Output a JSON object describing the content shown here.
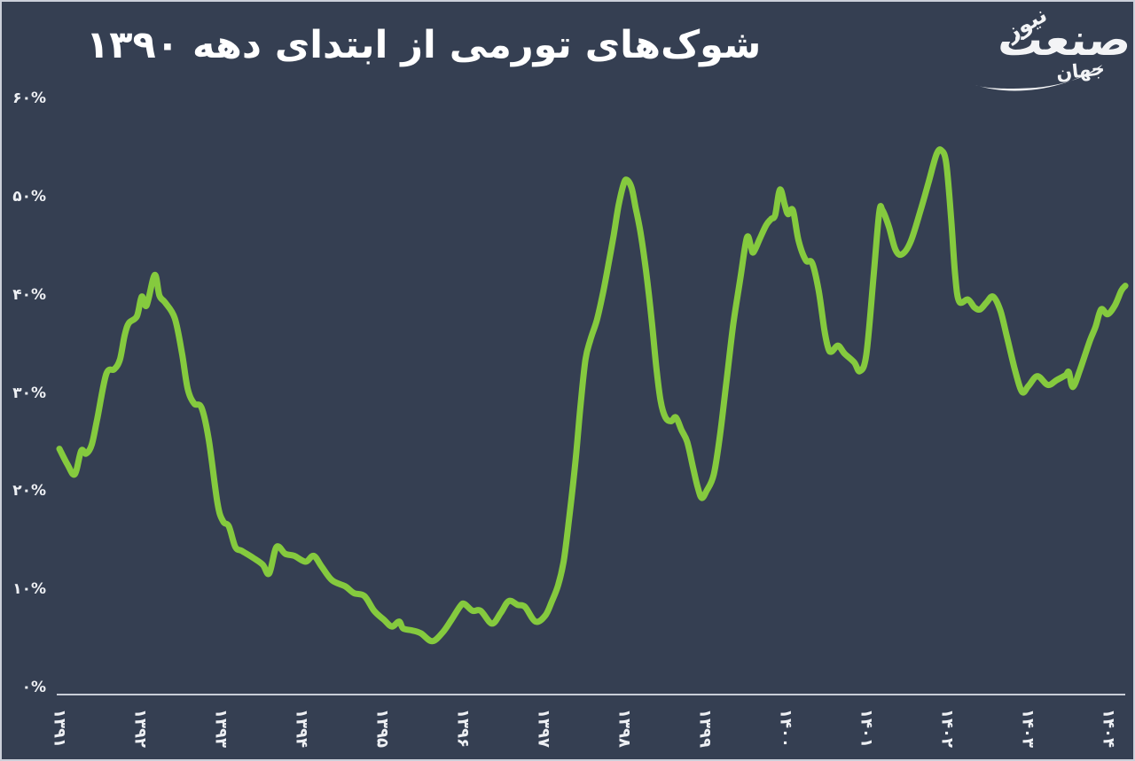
{
  "page": {
    "background_color": "#353f52",
    "border_color": "#ccd0da",
    "text_color": "#eef0f4"
  },
  "header": {
    "title": "شوک‌های تورمی از ابتدای دهه ۱۳۹۰"
  },
  "logo": {
    "top_word": "نیوز",
    "main_word": "صنعت",
    "bottom_word": "جهان"
  },
  "chart_data": {
    "type": "line",
    "title": "شوک‌های تورمی از ابتدای دهه ۱۳۹۰",
    "xlabel": "",
    "ylabel": "",
    "grid": false,
    "legend": "none",
    "line_color": "#85ca3e",
    "axis_color": "#c9ced8",
    "ylim": [
      0,
      60
    ],
    "xlim": [
      1390.95,
      1404.25
    ],
    "y_ticks": [
      {
        "label": "۶۰%",
        "value": 60
      },
      {
        "label": "۵۰%",
        "value": 50
      },
      {
        "label": "۴۰%",
        "value": 40
      },
      {
        "label": "۳۰%",
        "value": 30
      },
      {
        "label": "۲۰%",
        "value": 20
      },
      {
        "label": "۱۰%",
        "value": 10
      },
      {
        "label": "۰%",
        "value": 0
      }
    ],
    "x_ticks": [
      {
        "label": "۱۳۹۱",
        "year": 1391
      },
      {
        "label": "۱۳۹۲",
        "year": 1392
      },
      {
        "label": "۱۳۹۳",
        "year": 1393
      },
      {
        "label": "۱۳۹۴",
        "year": 1394
      },
      {
        "label": "۱۳۹۵",
        "year": 1395
      },
      {
        "label": "۱۳۹۶",
        "year": 1396
      },
      {
        "label": "۱۳۹۷",
        "year": 1397
      },
      {
        "label": "۱۳۹۸",
        "year": 1398
      },
      {
        "label": "۱۳۹۹",
        "year": 1399
      },
      {
        "label": "۱۴۰۰",
        "year": 1400
      },
      {
        "label": "۱۴۰۱",
        "year": 1401
      },
      {
        "label": "۱۴۰۲",
        "year": 1402
      },
      {
        "label": "۱۴۰۳",
        "year": 1403
      },
      {
        "label": "۱۴۰۴",
        "year": 1404
      }
    ],
    "points": [
      [
        1391.0,
        24.4
      ],
      [
        1391.1,
        22.8
      ],
      [
        1391.19,
        21.8
      ],
      [
        1391.27,
        24.2
      ],
      [
        1391.33,
        23.9
      ],
      [
        1391.4,
        24.8
      ],
      [
        1391.47,
        27.5
      ],
      [
        1391.58,
        32.0
      ],
      [
        1391.68,
        32.5
      ],
      [
        1391.75,
        33.5
      ],
      [
        1391.81,
        36.0
      ],
      [
        1391.86,
        37.2
      ],
      [
        1391.96,
        37.9
      ],
      [
        1392.02,
        39.9
      ],
      [
        1392.08,
        39.0
      ],
      [
        1392.18,
        42.1
      ],
      [
        1392.24,
        40.0
      ],
      [
        1392.31,
        39.3
      ],
      [
        1392.43,
        37.7
      ],
      [
        1392.52,
        34.1
      ],
      [
        1392.59,
        30.5
      ],
      [
        1392.67,
        29.0
      ],
      [
        1392.76,
        28.6
      ],
      [
        1392.85,
        25.4
      ],
      [
        1392.96,
        18.8
      ],
      [
        1393.03,
        17.0
      ],
      [
        1393.1,
        16.5
      ],
      [
        1393.18,
        14.4
      ],
      [
        1393.26,
        14.0
      ],
      [
        1393.4,
        13.3
      ],
      [
        1393.52,
        12.6
      ],
      [
        1393.6,
        11.7
      ],
      [
        1393.69,
        14.4
      ],
      [
        1393.8,
        13.7
      ],
      [
        1393.91,
        13.5
      ],
      [
        1394.05,
        12.9
      ],
      [
        1394.15,
        13.5
      ],
      [
        1394.25,
        12.4
      ],
      [
        1394.38,
        11.0
      ],
      [
        1394.54,
        10.4
      ],
      [
        1394.65,
        9.7
      ],
      [
        1394.78,
        9.4
      ],
      [
        1394.9,
        7.9
      ],
      [
        1395.02,
        7.0
      ],
      [
        1395.12,
        6.3
      ],
      [
        1395.21,
        6.8
      ],
      [
        1395.26,
        6.1
      ],
      [
        1395.37,
        5.9
      ],
      [
        1395.48,
        5.6
      ],
      [
        1395.62,
        4.8
      ],
      [
        1395.75,
        5.7
      ],
      [
        1395.86,
        7.0
      ],
      [
        1395.97,
        8.4
      ],
      [
        1396.02,
        8.6
      ],
      [
        1396.12,
        7.9
      ],
      [
        1396.22,
        7.9
      ],
      [
        1396.36,
        6.6
      ],
      [
        1396.47,
        7.7
      ],
      [
        1396.57,
        8.9
      ],
      [
        1396.68,
        8.5
      ],
      [
        1396.77,
        8.3
      ],
      [
        1396.9,
        6.8
      ],
      [
        1397.02,
        7.4
      ],
      [
        1397.1,
        8.8
      ],
      [
        1397.18,
        10.5
      ],
      [
        1397.25,
        13.0
      ],
      [
        1397.32,
        17.5
      ],
      [
        1397.4,
        23.5
      ],
      [
        1397.46,
        29.0
      ],
      [
        1397.52,
        33.5
      ],
      [
        1397.58,
        35.5
      ],
      [
        1397.66,
        37.5
      ],
      [
        1397.73,
        40.0
      ],
      [
        1397.8,
        43.0
      ],
      [
        1397.87,
        46.2
      ],
      [
        1397.93,
        49.2
      ],
      [
        1397.99,
        51.3
      ],
      [
        1398.03,
        51.8
      ],
      [
        1398.09,
        51.0
      ],
      [
        1398.14,
        49.0
      ],
      [
        1398.2,
        46.5
      ],
      [
        1398.27,
        42.5
      ],
      [
        1398.34,
        37.5
      ],
      [
        1398.4,
        32.5
      ],
      [
        1398.45,
        29.3
      ],
      [
        1398.51,
        27.6
      ],
      [
        1398.58,
        27.2
      ],
      [
        1398.64,
        27.6
      ],
      [
        1398.71,
        26.3
      ],
      [
        1398.78,
        25.1
      ],
      [
        1398.85,
        22.6
      ],
      [
        1398.91,
        20.5
      ],
      [
        1398.96,
        19.4
      ],
      [
        1399.02,
        20.1
      ],
      [
        1399.11,
        21.8
      ],
      [
        1399.19,
        26.0
      ],
      [
        1399.27,
        31.5
      ],
      [
        1399.35,
        37.0
      ],
      [
        1399.44,
        41.8
      ],
      [
        1399.52,
        45.9
      ],
      [
        1399.57,
        45.0
      ],
      [
        1399.6,
        44.4
      ],
      [
        1399.68,
        45.8
      ],
      [
        1399.76,
        47.2
      ],
      [
        1399.82,
        47.8
      ],
      [
        1399.87,
        48.2
      ],
      [
        1399.93,
        50.8
      ],
      [
        1399.99,
        49.2
      ],
      [
        1400.03,
        48.3
      ],
      [
        1400.09,
        48.7
      ],
      [
        1400.16,
        45.6
      ],
      [
        1400.25,
        43.6
      ],
      [
        1400.33,
        43.3
      ],
      [
        1400.41,
        40.5
      ],
      [
        1400.48,
        36.5
      ],
      [
        1400.53,
        34.6
      ],
      [
        1400.57,
        34.3
      ],
      [
        1400.65,
        34.9
      ],
      [
        1400.73,
        34.1
      ],
      [
        1400.85,
        33.2
      ],
      [
        1400.92,
        32.3
      ],
      [
        1401.0,
        34.0
      ],
      [
        1401.09,
        42.0
      ],
      [
        1401.16,
        48.5
      ],
      [
        1401.2,
        48.7
      ],
      [
        1401.28,
        47.0
      ],
      [
        1401.36,
        44.7
      ],
      [
        1401.44,
        44.2
      ],
      [
        1401.55,
        45.5
      ],
      [
        1401.68,
        48.9
      ],
      [
        1401.77,
        51.5
      ],
      [
        1401.87,
        54.4
      ],
      [
        1401.93,
        54.8
      ],
      [
        1401.99,
        53.5
      ],
      [
        1402.05,
        48.0
      ],
      [
        1402.1,
        42.2
      ],
      [
        1402.15,
        39.4
      ],
      [
        1402.26,
        39.6
      ],
      [
        1402.34,
        38.8
      ],
      [
        1402.41,
        38.6
      ],
      [
        1402.49,
        39.3
      ],
      [
        1402.57,
        39.9
      ],
      [
        1402.66,
        38.5
      ],
      [
        1402.74,
        35.9
      ],
      [
        1402.84,
        32.5
      ],
      [
        1402.93,
        30.2
      ],
      [
        1403.01,
        30.8
      ],
      [
        1403.12,
        31.8
      ],
      [
        1403.25,
        30.9
      ],
      [
        1403.36,
        31.4
      ],
      [
        1403.47,
        31.9
      ],
      [
        1403.51,
        32.2
      ],
      [
        1403.56,
        30.7
      ],
      [
        1403.65,
        32.5
      ],
      [
        1403.77,
        35.4
      ],
      [
        1403.84,
        36.8
      ],
      [
        1403.91,
        38.6
      ],
      [
        1403.99,
        38.1
      ],
      [
        1404.08,
        39.0
      ],
      [
        1404.16,
        40.5
      ],
      [
        1404.21,
        41.0
      ]
    ]
  }
}
